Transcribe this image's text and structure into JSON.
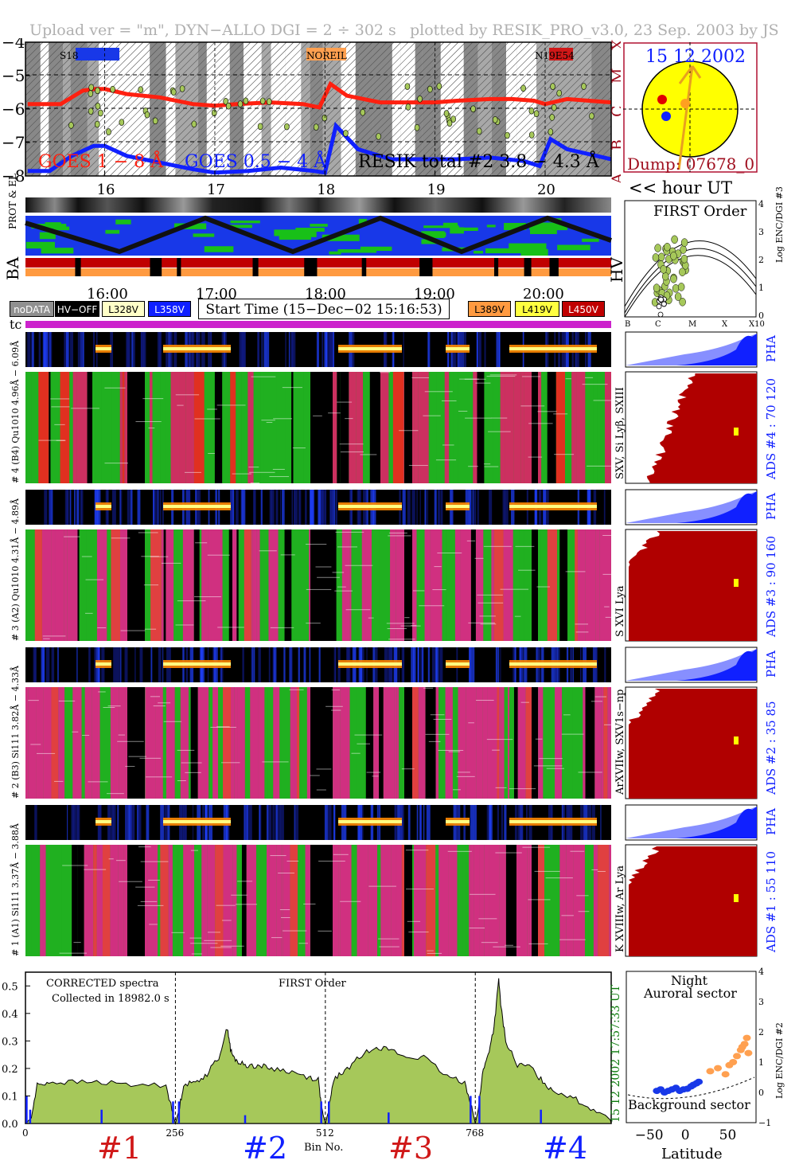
{
  "header": {
    "left": "Upload ver = \"m\", DYN−ALLO DGI =   2 ÷ 302 s",
    "right": "plotted by RESIK_PRO_v3.0, 23 Sep. 2003 by JS"
  },
  "colors": {
    "goes_long": "#ff2010",
    "goes_short": "#1020ff",
    "resik": "#000000",
    "sun": "#ffff00",
    "magenta_bar": "#cc22cc",
    "first_order_fill": "#a6c85a",
    "sector_orange": "#ffa050",
    "sector_blue": "#1838e8",
    "pha_blue": "#1020ff",
    "ads_red": "#b00000"
  },
  "goes_panel": {
    "y_ticks": [
      "−4",
      "−5",
      "−6",
      "−7",
      "−8"
    ],
    "flare_classes": [
      "X",
      "M",
      "C",
      "B",
      "A"
    ],
    "x_ticks": [
      "16",
      "17",
      "18",
      "19",
      "20"
    ],
    "legend_goes_long": "GOES 1 − 8 Å",
    "legend_goes_short": "GOES 0.5 − 4 Å",
    "legend_resik": "RESIK total #2  3.8 − 4.3 Å",
    "tags": [
      "S18",
      "NOREIL",
      "N19E54"
    ]
  },
  "sun_panel": {
    "date": "15 12 2002",
    "dump": "Dump: 07678_0"
  },
  "hour_label": "<< hour UT",
  "status_strip": {
    "label_prot_el": "PROT & EL",
    "label_ba": "BA",
    "label_hv": "HV",
    "time_ticks": [
      "16:00",
      "17:00",
      "18:00",
      "19:00",
      "20:00"
    ],
    "start_time": "Start Time (15−Dec−02 15:16:53)",
    "legend_buttons": [
      {
        "label": "noDATA",
        "bg": "#909090",
        "fg": "#ffffff"
      },
      {
        "label": "HV−OFF",
        "bg": "#000000",
        "fg": "#ffffff"
      },
      {
        "label": "L328V",
        "bg": "#ffffc8",
        "fg": "#000000"
      },
      {
        "label": "L358V",
        "bg": "#1020ff",
        "fg": "#ffffff"
      },
      {
        "label": "L389V",
        "bg": "#ff9a40",
        "fg": "#000000"
      },
      {
        "label": "L419V",
        "bg": "#ffff40",
        "fg": "#000000"
      },
      {
        "label": "L450V",
        "bg": "#c00000",
        "fg": "#ffffff"
      }
    ],
    "tc_label": "tc"
  },
  "first_order_panel": {
    "title": "FIRST Order",
    "y_label": "Log ENC/DGI #3",
    "y_ticks": [
      "4",
      "3",
      "2",
      "1",
      "0"
    ],
    "x_ticks": [
      "B",
      "C",
      "M",
      "X",
      "X10"
    ]
  },
  "channels": [
    {
      "pha_label": "# 4 (B4) Qu1010 4.96Å − 6.09Å",
      "lines": "SXV, Si Lyβ, SXIII",
      "ads": "ADS #4 :   70 120",
      "pha": "PHA"
    },
    {
      "pha_label": "# 3 (A2) Qu1010 4.31Å − 4.89Å",
      "lines": "S XVI Lya",
      "ads": "ADS #3 :   90 160",
      "pha": "PHA"
    },
    {
      "pha_label": "# 2 (B3) Si111 3.82Å − 4.33Å",
      "lines": "ArXVIIw, SXV1s−np",
      "ads": "ADS #2 :   35  85",
      "pha": "PHA"
    },
    {
      "pha_label": "# 1 (A1) Si111 3.37Å − 3.88Å",
      "lines": "K XVIIIw, Ar Lya",
      "ads": "ADS #1 :   55 110",
      "pha": "PHA"
    }
  ],
  "spectrum_panel": {
    "label_corrected": "CORRECTED spectra",
    "label_collected": "Collected in 18982.0 s",
    "label_first_order": "FIRST Order",
    "y_ticks": [
      "0.5",
      "0.4",
      "0.3",
      "0.2",
      "0.1",
      "0.0"
    ],
    "x_ticks": [
      "0",
      "256",
      "512",
      "768"
    ],
    "x_label": "Bin No.",
    "time_range": "15 12 2002   17:57:33 UT",
    "channel_labels": [
      "#1",
      "#2",
      "#3",
      "#4"
    ]
  },
  "sector_panel": {
    "title_night": "Night",
    "title_auroral": "Auroral sector",
    "title_background": "Background sector",
    "x_label": "Latitude",
    "x_ticks": [
      "−50",
      "0",
      "50"
    ],
    "y_label": "Log ENC/DGI #2",
    "y_ticks": [
      "4",
      "3",
      "2",
      "1",
      "0",
      "−1"
    ]
  },
  "chart_data": [
    {
      "type": "line",
      "title": "",
      "xlabel": "",
      "ylabel": "",
      "ylim": [
        -8,
        -4
      ],
      "x_axis": "hour UT",
      "x_range": [
        15.28,
        20.6
      ],
      "series": [
        {
          "name": "GOES 1 − 8 Å",
          "x": [
            15.3,
            15.6,
            15.8,
            15.9,
            16.0,
            16.2,
            16.5,
            16.8,
            17.0,
            17.2,
            17.5,
            17.8,
            17.95,
            18.05,
            18.2,
            18.5,
            18.8,
            19.0,
            19.2,
            19.5,
            19.7,
            19.9,
            20.0,
            20.2,
            20.6
          ],
          "y": [
            -5.85,
            -5.85,
            -5.45,
            -5.4,
            -5.4,
            -5.55,
            -5.65,
            -5.85,
            -5.9,
            -5.85,
            -5.8,
            -5.85,
            -5.95,
            -5.25,
            -5.6,
            -5.8,
            -5.8,
            -5.8,
            -5.75,
            -5.7,
            -5.7,
            -5.75,
            -5.85,
            -5.7,
            -5.8
          ]
        },
        {
          "name": "GOES 0.5 − 4 Å",
          "x": [
            15.3,
            15.5,
            15.7,
            15.9,
            16.0,
            16.2,
            16.5,
            16.8,
            17.0,
            17.3,
            17.6,
            17.9,
            18.0,
            18.1,
            18.3,
            18.6,
            18.9,
            19.2,
            19.5,
            19.8,
            19.95,
            20.05,
            20.2,
            20.6
          ],
          "y": [
            -7.85,
            -7.85,
            -7.4,
            -7.1,
            -7.1,
            -7.4,
            -7.6,
            -7.8,
            -7.9,
            -7.85,
            -7.75,
            -7.85,
            -7.9,
            -6.5,
            -7.2,
            -7.5,
            -7.5,
            -7.5,
            -7.45,
            -7.55,
            -7.7,
            -6.9,
            -7.2,
            -7.5
          ]
        }
      ]
    },
    {
      "type": "area",
      "title": "",
      "xlabel": "Bin No.",
      "ylabel": "",
      "ylim": [
        0,
        0.55
      ],
      "xlim": [
        0,
        1000
      ],
      "series": [
        {
          "name": "",
          "x": [
            0,
            10,
            20,
            40,
            80,
            130,
            180,
            240,
            250,
            256,
            262,
            270,
            290,
            310,
            330,
            345,
            350,
            355,
            365,
            380,
            400,
            420,
            450,
            480,
            500,
            506,
            512,
            518,
            526,
            545,
            570,
            595,
            620,
            650,
            680,
            720,
            750,
            762,
            768,
            774,
            780,
            790,
            800,
            808,
            812,
            820,
            840,
            860,
            880,
            900,
            930,
            960,
            990,
            1000
          ],
          "y": [
            0.0,
            0.02,
            0.14,
            0.15,
            0.15,
            0.15,
            0.14,
            0.14,
            0.05,
            0.0,
            0.05,
            0.14,
            0.15,
            0.18,
            0.24,
            0.35,
            0.27,
            0.24,
            0.22,
            0.21,
            0.21,
            0.2,
            0.19,
            0.17,
            0.16,
            0.05,
            0.0,
            0.05,
            0.16,
            0.19,
            0.24,
            0.28,
            0.27,
            0.24,
            0.24,
            0.17,
            0.15,
            0.06,
            0.0,
            0.06,
            0.18,
            0.25,
            0.35,
            0.52,
            0.42,
            0.3,
            0.21,
            0.21,
            0.16,
            0.12,
            0.1,
            0.06,
            0.03,
            0.01
          ]
        }
      ]
    },
    {
      "type": "scatter",
      "title": "",
      "xlabel": "Latitude",
      "ylabel": "Log ENC/DGI #2",
      "xlim": [
        -80,
        90
      ],
      "ylim": [
        -1,
        4
      ],
      "series": [
        {
          "name": "",
          "x": [
            -40,
            -35,
            -30,
            -25,
            -20,
            -15,
            -10,
            -5,
            0,
            5,
            8,
            12,
            15
          ],
          "y": [
            0.05,
            0.1,
            0.0,
            0.05,
            0.1,
            0.15,
            0.05,
            0.1,
            0.12,
            0.2,
            0.25,
            0.3,
            0.35
          ]
        },
        {
          "name": "",
          "x": [
            30,
            40,
            50,
            55,
            60,
            65,
            70,
            72,
            75,
            78,
            80
          ],
          "y": [
            0.7,
            0.8,
            0.6,
            0.9,
            1.0,
            1.2,
            1.4,
            1.5,
            1.6,
            1.8,
            1.3
          ]
        }
      ]
    }
  ]
}
